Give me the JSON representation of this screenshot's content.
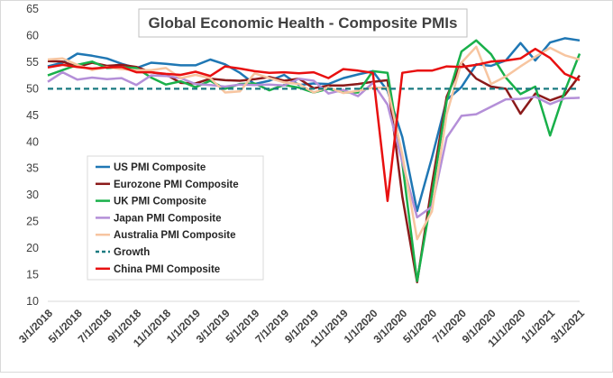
{
  "chart_data": {
    "type": "line",
    "title": "Global Economic Health - Composite PMIs",
    "ylim": [
      10,
      65
    ],
    "yticks": [
      10,
      15,
      20,
      25,
      30,
      35,
      40,
      45,
      50,
      55,
      60,
      65
    ],
    "x": [
      "3/1/2018",
      "4/1/2018",
      "5/1/2018",
      "6/1/2018",
      "7/1/2018",
      "8/1/2018",
      "9/1/2018",
      "10/1/2018",
      "11/1/2018",
      "12/1/2018",
      "1/1/2019",
      "2/1/2019",
      "3/1/2019",
      "4/1/2019",
      "5/1/2019",
      "6/1/2019",
      "7/1/2019",
      "8/1/2019",
      "9/1/2019",
      "10/1/2019",
      "11/1/2019",
      "12/1/2019",
      "1/1/2020",
      "2/1/2020",
      "3/1/2020",
      "4/1/2020",
      "5/1/2020",
      "6/1/2020",
      "7/1/2020",
      "8/1/2020",
      "9/1/2020",
      "10/1/2020",
      "11/1/2020",
      "12/1/2020",
      "1/1/2021",
      "2/1/2021",
      "3/1/2021"
    ],
    "xtick_labels": [
      "3/1/2018",
      "5/1/2018",
      "7/1/2018",
      "9/1/2018",
      "11/1/2018",
      "1/1/2019",
      "3/1/2019",
      "5/1/2019",
      "7/1/2019",
      "9/1/2019",
      "11/1/2019",
      "1/1/2020",
      "3/1/2020",
      "5/1/2020",
      "7/1/2020",
      "9/1/2020",
      "11/1/2020",
      "1/1/2021",
      "3/1/2021"
    ],
    "grid": false,
    "legend_position": "left",
    "series": [
      {
        "name": "US PMI Composite",
        "color": "#1f77b4",
        "dash": "",
        "values": [
          54.2,
          54.9,
          56.6,
          56.2,
          55.7,
          54.7,
          53.9,
          54.9,
          54.7,
          54.4,
          54.4,
          55.5,
          54.6,
          53.0,
          50.9,
          51.5,
          52.6,
          50.7,
          51.0,
          50.9,
          52.0,
          52.7,
          53.3,
          49.6,
          40.9,
          27.0,
          37.0,
          47.9,
          50.3,
          54.6,
          54.3,
          55.3,
          58.6,
          55.3,
          58.7,
          59.5,
          59.1
        ]
      },
      {
        "name": "Eurozone PMI Composite",
        "color": "#8b1a1a",
        "dash": "",
        "values": [
          55.2,
          55.1,
          54.1,
          54.9,
          54.3,
          54.5,
          54.1,
          53.1,
          52.7,
          51.1,
          51.0,
          51.9,
          51.6,
          51.5,
          51.8,
          52.2,
          51.5,
          51.9,
          50.1,
          50.6,
          50.6,
          50.9,
          51.3,
          51.6,
          29.7,
          13.6,
          31.9,
          48.5,
          54.9,
          51.9,
          50.4,
          50.0,
          45.3,
          49.1,
          47.8,
          48.8,
          52.5
        ]
      },
      {
        "name": "UK PMI Composite",
        "color": "#19b04a",
        "dash": "",
        "values": [
          52.5,
          53.5,
          54.5,
          55.1,
          53.9,
          54.0,
          53.9,
          52.1,
          50.8,
          51.4,
          50.3,
          51.5,
          50.0,
          50.9,
          51.0,
          49.7,
          50.7,
          50.2,
          49.3,
          50.0,
          49.3,
          49.3,
          53.3,
          53.0,
          36.0,
          13.8,
          30.0,
          47.7,
          57.0,
          59.1,
          56.5,
          52.1,
          49.0,
          50.4,
          41.2,
          49.6,
          56.6
        ]
      },
      {
        "name": "Japan PMI Composite",
        "color": "#b48fd8",
        "dash": "",
        "values": [
          51.3,
          53.1,
          51.7,
          52.1,
          51.8,
          52.0,
          50.7,
          52.5,
          52.4,
          52.0,
          50.9,
          50.7,
          50.4,
          50.8,
          50.7,
          50.8,
          50.6,
          51.9,
          51.5,
          49.1,
          49.8,
          48.6,
          51.1,
          47.0,
          36.2,
          25.8,
          27.8,
          40.8,
          44.9,
          45.2,
          46.6,
          48.0,
          48.1,
          48.5,
          47.1,
          48.2,
          48.3
        ]
      },
      {
        "name": "Australia PMI Composite",
        "color": "#f7c5a0",
        "dash": "",
        "values": [
          55.5,
          55.7,
          54.5,
          53.5,
          54.1,
          53.7,
          53.5,
          53.5,
          53.9,
          52.0,
          52.6,
          52.0,
          49.3,
          49.5,
          52.9,
          52.0,
          51.2,
          50.9,
          49.3,
          50.3,
          49.2,
          49.6,
          50.2,
          50.2,
          37.6,
          21.7,
          26.9,
          45.2,
          54.9,
          57.9,
          50.9,
          52.3,
          54.2,
          56.0,
          57.7,
          56.3,
          55.5
        ]
      },
      {
        "name": "Growth",
        "color": "#1a7a80",
        "dash": "6,4",
        "values": [
          50,
          50,
          50,
          50,
          50,
          50,
          50,
          50,
          50,
          50,
          50,
          50,
          50,
          50,
          50,
          50,
          50,
          50,
          50,
          50,
          50,
          50,
          50,
          50,
          50,
          50,
          50,
          50,
          50,
          50,
          50,
          50,
          50,
          50,
          50,
          50,
          50
        ]
      },
      {
        "name": "China PMI Composite",
        "color": "#e81010",
        "dash": "",
        "values": [
          54.0,
          54.5,
          54.1,
          53.8,
          54.0,
          54.1,
          53.1,
          53.1,
          52.8,
          52.6,
          53.2,
          52.4,
          54.2,
          53.8,
          53.3,
          53.0,
          53.1,
          52.9,
          53.1,
          52.0,
          53.7,
          53.4,
          53.0,
          28.9,
          53.0,
          53.4,
          53.4,
          54.2,
          54.1,
          54.5,
          55.1,
          55.3,
          55.7,
          57.5,
          55.8,
          52.8,
          51.6
        ]
      }
    ]
  }
}
